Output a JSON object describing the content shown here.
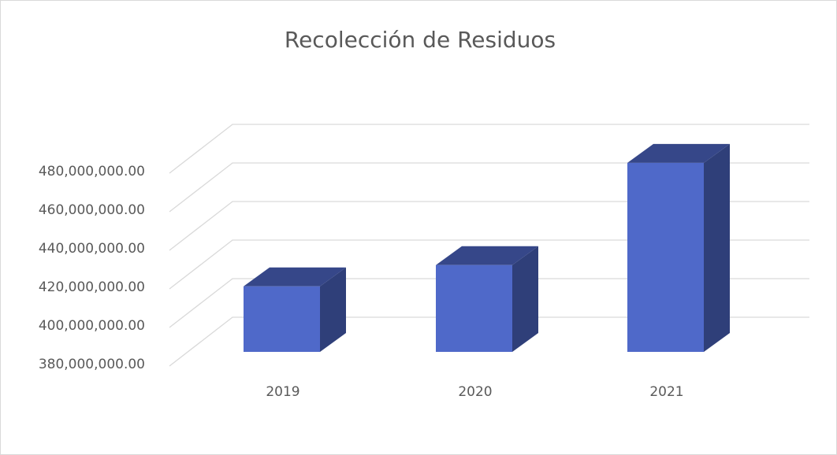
{
  "chart_data": {
    "type": "bar3d",
    "title": "Recolección de Residuos",
    "categories": [
      "2019",
      "2020",
      "2021"
    ],
    "values": [
      414000000,
      425000000,
      478000000
    ],
    "color": "#4f69c9",
    "ylim": [
      380000000,
      480000000
    ],
    "yticks": [
      {
        "value": 380000000,
        "label": "380,000,000.00"
      },
      {
        "value": 400000000,
        "label": "400,000,000.00"
      },
      {
        "value": 420000000,
        "label": "420,000,000.00"
      },
      {
        "value": 440000000,
        "label": "440,000,000.00"
      },
      {
        "value": 460000000,
        "label": "460,000,000.00"
      },
      {
        "value": 480000000,
        "label": "480,000,000.00"
      }
    ],
    "grid": true
  }
}
